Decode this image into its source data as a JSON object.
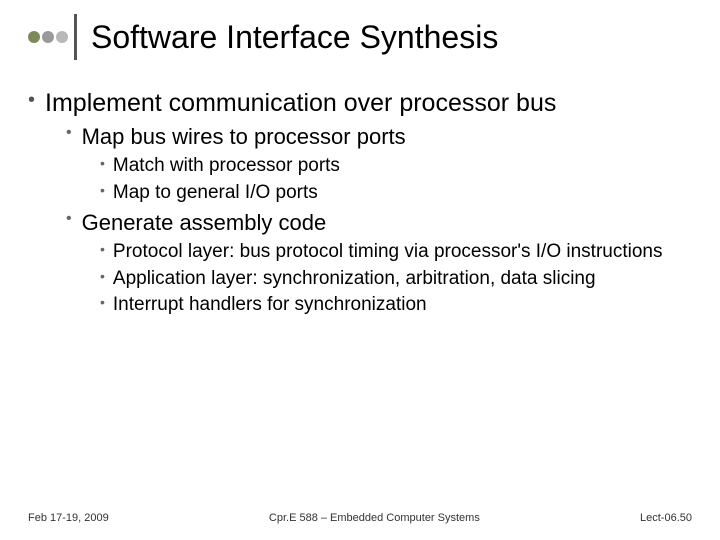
{
  "decor": {
    "dot_colors": [
      "#7a8a5a",
      "#9a9a9a",
      "#b8b8b8"
    ],
    "vline_color": "#555555"
  },
  "title": "Software Interface Synthesis",
  "bullets": {
    "l1_0": "Implement communication over processor bus",
    "l2_0": "Map bus wires to processor ports",
    "l3_0": "Match with processor ports",
    "l3_1": "Map to general I/O ports",
    "l2_1": "Generate assembly code",
    "l3_2": "Protocol layer: bus protocol timing via processor's I/O instructions",
    "l3_3": "Application layer: synchronization, arbitration, data slicing",
    "l3_4": "Interrupt handlers for synchronization"
  },
  "footer": {
    "left": "Feb 17-19, 2009",
    "center": "Cpr.E 588 – Embedded Computer Systems",
    "right": "Lect-06.50"
  },
  "style": {
    "title_fontsize": 32,
    "l1_fontsize": 25,
    "l2_fontsize": 22,
    "l3_fontsize": 19,
    "footer_fontsize": 11,
    "text_color": "#000000",
    "bullet_color": "#666666",
    "background_color": "#ffffff"
  }
}
